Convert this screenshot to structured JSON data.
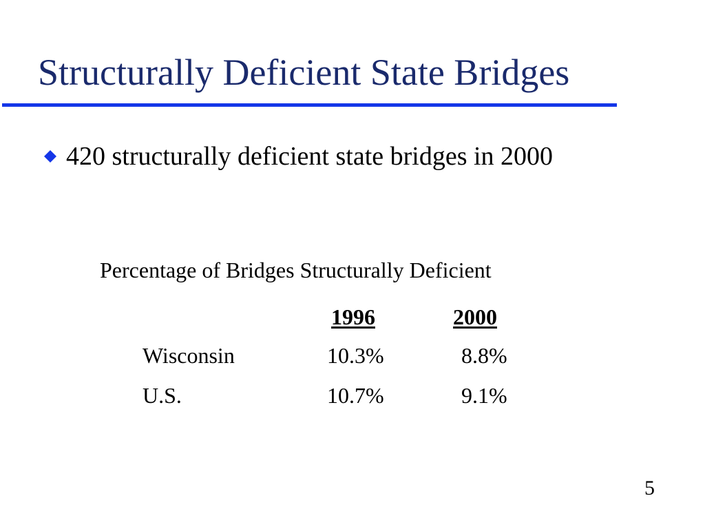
{
  "slide": {
    "title": "Structurally Deficient State Bridges",
    "accent_color": "#1436e8",
    "title_color": "#1a2a6c",
    "bullet": {
      "icon": "diamond-bullet-icon",
      "text": "420 structurally deficient state bridges in 2000"
    },
    "page_number": "5"
  },
  "table": {
    "caption": "Percentage of Bridges Structurally Deficient",
    "columns": [
      "1996",
      "2000"
    ],
    "rows": [
      {
        "label": "Wisconsin",
        "values": [
          "10.3%",
          "8.8%"
        ]
      },
      {
        "label": "U.S.",
        "values": [
          "10.7%",
          "9.1%"
        ]
      }
    ]
  }
}
